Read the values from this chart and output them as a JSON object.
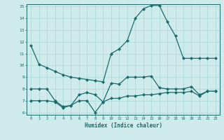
{
  "xlabel": "Humidex (Indice chaleur)",
  "x_values": [
    0,
    1,
    2,
    3,
    4,
    5,
    6,
    7,
    8,
    9,
    10,
    11,
    12,
    13,
    14,
    15,
    16,
    17,
    18,
    19,
    20,
    21,
    22,
    23
  ],
  "line1": [
    11.7,
    10.1,
    9.8,
    9.5,
    9.2,
    9.0,
    8.9,
    8.8,
    8.7,
    8.6,
    11.0,
    11.4,
    12.1,
    14.0,
    14.8,
    15.1,
    15.1,
    13.7,
    12.5,
    10.6,
    10.6,
    10.6,
    10.6,
    10.6
  ],
  "line2": [
    8.0,
    8.0,
    8.0,
    7.0,
    6.5,
    6.6,
    7.5,
    7.7,
    7.5,
    6.9,
    8.5,
    8.4,
    9.0,
    9.0,
    9.0,
    9.1,
    8.1,
    8.0,
    8.0,
    8.0,
    8.2,
    7.5,
    7.8,
    7.8
  ],
  "line3": [
    7.0,
    7.0,
    7.0,
    6.9,
    6.4,
    6.6,
    7.0,
    7.0,
    6.0,
    6.9,
    7.2,
    7.2,
    7.4,
    7.4,
    7.5,
    7.5,
    7.6,
    7.7,
    7.7,
    7.7,
    7.8,
    7.4,
    7.8,
    7.8
  ],
  "line_color": "#1a6b6b",
  "bg_color": "#ceeaea",
  "grid_color": "#b0d4d4",
  "ylim": [
    6,
    15
  ],
  "yticks": [
    6,
    7,
    8,
    9,
    10,
    11,
    12,
    13,
    14,
    15
  ],
  "xlim": [
    -0.5,
    23.5
  ]
}
